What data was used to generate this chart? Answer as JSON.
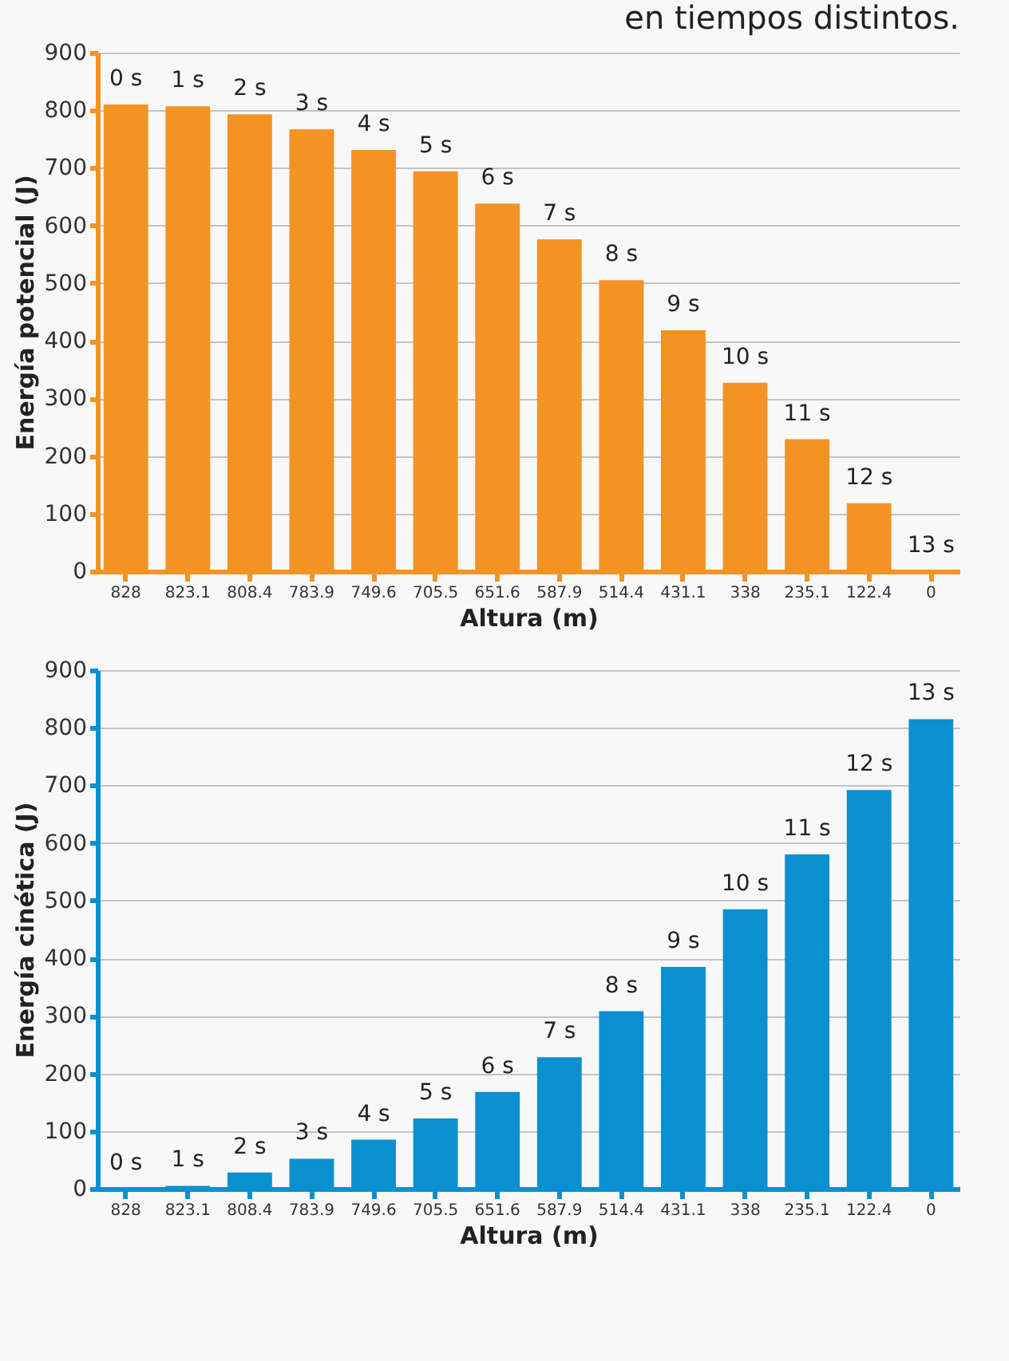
{
  "chart_data": [
    {
      "type": "bar",
      "title": "en tiempos distintos.",
      "xlabel": "Altura (m)",
      "ylabel": "Energía potencial (J)",
      "categories": [
        "828",
        "823.1",
        "808.4",
        "783.9",
        "749.6",
        "705.5",
        "651.6",
        "587.9",
        "514.4",
        "431.1",
        "338",
        "235.1",
        "122.4",
        "0"
      ],
      "series": [
        {
          "color": "#f39323",
          "values": [
            810,
            807,
            793,
            767,
            731,
            694,
            638,
            576,
            505,
            418,
            327,
            229,
            118,
            0
          ]
        }
      ],
      "ylim": [
        0,
        900
      ],
      "yticks": [
        0,
        100,
        200,
        300,
        400,
        500,
        600,
        700,
        800,
        900
      ],
      "grid": "y",
      "legend": false,
      "annotations": [
        {
          "text": "0 s",
          "x": "828",
          "y": 810
        },
        {
          "text": "1 s",
          "x": "823.1",
          "y": 807
        },
        {
          "text": "2 s",
          "x": "808.4",
          "y": 793
        },
        {
          "text": "3 s",
          "x": "783.9",
          "y": 767
        },
        {
          "text": "4 s",
          "x": "749.6",
          "y": 731
        },
        {
          "text": "5 s",
          "x": "705.5",
          "y": 694
        },
        {
          "text": "6 s",
          "x": "651.6",
          "y": 638
        },
        {
          "text": "7 s",
          "x": "587.9",
          "y": 576
        },
        {
          "text": "8 s",
          "x": "514.4",
          "y": 505
        },
        {
          "text": "9 s",
          "x": "431.1",
          "y": 418
        },
        {
          "text": "10 s",
          "x": "338",
          "y": 327
        },
        {
          "text": "11 s",
          "x": "235.1",
          "y": 229
        },
        {
          "text": "12 s",
          "x": "122.4",
          "y": 118
        },
        {
          "text": "13 s",
          "x": "0",
          "y": 0
        }
      ]
    },
    {
      "type": "bar",
      "xlabel": "Altura (m)",
      "ylabel": "Energía cinética (J)",
      "categories": [
        "828",
        "823.1",
        "808.4",
        "783.9",
        "749.6",
        "705.5",
        "651.6",
        "587.9",
        "514.4",
        "431.1",
        "338",
        "235.1",
        "122.4",
        "0"
      ],
      "series": [
        {
          "color": "#0a90d0",
          "values": [
            0,
            5,
            28,
            52,
            85,
            122,
            168,
            228,
            308,
            385,
            485,
            580,
            692,
            815
          ]
        }
      ],
      "ylim": [
        0,
        900
      ],
      "yticks": [
        0,
        100,
        200,
        300,
        400,
        500,
        600,
        700,
        800,
        900
      ],
      "grid": "y",
      "legend": false,
      "annotations": [
        {
          "text": "0 s",
          "x": "828",
          "y": 0
        },
        {
          "text": "1 s",
          "x": "823.1",
          "y": 5
        },
        {
          "text": "2 s",
          "x": "808.4",
          "y": 28
        },
        {
          "text": "3 s",
          "x": "783.9",
          "y": 52
        },
        {
          "text": "4 s",
          "x": "749.6",
          "y": 85
        },
        {
          "text": "5 s",
          "x": "705.5",
          "y": 122
        },
        {
          "text": "6 s",
          "x": "651.6",
          "y": 168
        },
        {
          "text": "7 s",
          "x": "587.9",
          "y": 228
        },
        {
          "text": "8 s",
          "x": "514.4",
          "y": 308
        },
        {
          "text": "9 s",
          "x": "431.1",
          "y": 385
        },
        {
          "text": "10 s",
          "x": "338",
          "y": 485
        },
        {
          "text": "11 s",
          "x": "235.1",
          "y": 580
        },
        {
          "text": "12 s",
          "x": "122.4",
          "y": 692
        },
        {
          "text": "13 s",
          "x": "0",
          "y": 815
        }
      ]
    }
  ]
}
